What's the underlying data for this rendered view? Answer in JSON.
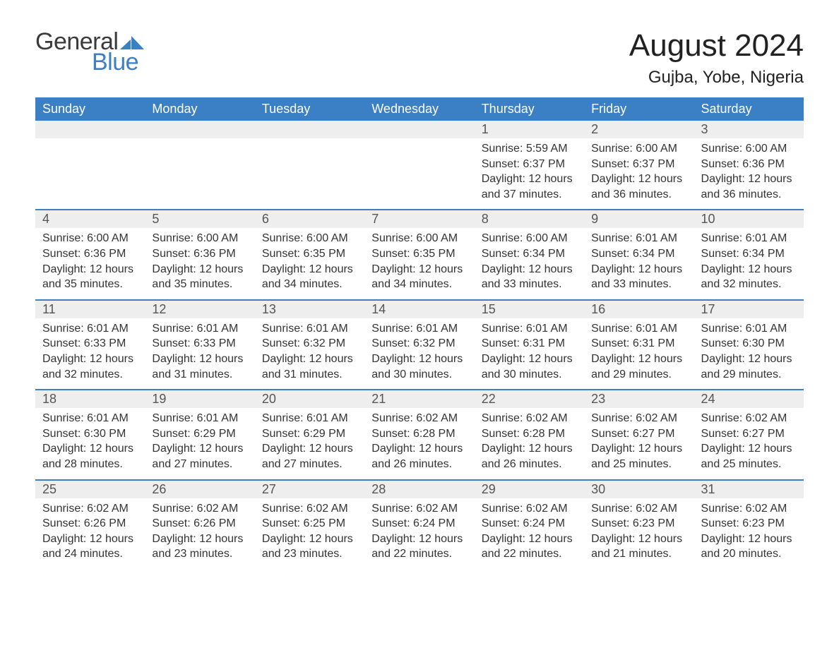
{
  "logo": {
    "general": "General",
    "blue": "Blue",
    "flag_color": "#3b7fc4"
  },
  "title": "August 2024",
  "location": "Gujba, Yobe, Nigeria",
  "colors": {
    "header_bg": "#3b7fc4",
    "header_text": "#ffffff",
    "daynum_bg": "#eeeeee",
    "week_border": "#3b7fc4",
    "text": "#333333",
    "page_bg": "#ffffff"
  },
  "weekdays": [
    "Sunday",
    "Monday",
    "Tuesday",
    "Wednesday",
    "Thursday",
    "Friday",
    "Saturday"
  ],
  "weeks": [
    [
      null,
      null,
      null,
      null,
      {
        "n": "1",
        "sr": "5:59 AM",
        "ss": "6:37 PM",
        "dl": "12 hours and 37 minutes."
      },
      {
        "n": "2",
        "sr": "6:00 AM",
        "ss": "6:37 PM",
        "dl": "12 hours and 36 minutes."
      },
      {
        "n": "3",
        "sr": "6:00 AM",
        "ss": "6:36 PM",
        "dl": "12 hours and 36 minutes."
      }
    ],
    [
      {
        "n": "4",
        "sr": "6:00 AM",
        "ss": "6:36 PM",
        "dl": "12 hours and 35 minutes."
      },
      {
        "n": "5",
        "sr": "6:00 AM",
        "ss": "6:36 PM",
        "dl": "12 hours and 35 minutes."
      },
      {
        "n": "6",
        "sr": "6:00 AM",
        "ss": "6:35 PM",
        "dl": "12 hours and 34 minutes."
      },
      {
        "n": "7",
        "sr": "6:00 AM",
        "ss": "6:35 PM",
        "dl": "12 hours and 34 minutes."
      },
      {
        "n": "8",
        "sr": "6:00 AM",
        "ss": "6:34 PM",
        "dl": "12 hours and 33 minutes."
      },
      {
        "n": "9",
        "sr": "6:01 AM",
        "ss": "6:34 PM",
        "dl": "12 hours and 33 minutes."
      },
      {
        "n": "10",
        "sr": "6:01 AM",
        "ss": "6:34 PM",
        "dl": "12 hours and 32 minutes."
      }
    ],
    [
      {
        "n": "11",
        "sr": "6:01 AM",
        "ss": "6:33 PM",
        "dl": "12 hours and 32 minutes."
      },
      {
        "n": "12",
        "sr": "6:01 AM",
        "ss": "6:33 PM",
        "dl": "12 hours and 31 minutes."
      },
      {
        "n": "13",
        "sr": "6:01 AM",
        "ss": "6:32 PM",
        "dl": "12 hours and 31 minutes."
      },
      {
        "n": "14",
        "sr": "6:01 AM",
        "ss": "6:32 PM",
        "dl": "12 hours and 30 minutes."
      },
      {
        "n": "15",
        "sr": "6:01 AM",
        "ss": "6:31 PM",
        "dl": "12 hours and 30 minutes."
      },
      {
        "n": "16",
        "sr": "6:01 AM",
        "ss": "6:31 PM",
        "dl": "12 hours and 29 minutes."
      },
      {
        "n": "17",
        "sr": "6:01 AM",
        "ss": "6:30 PM",
        "dl": "12 hours and 29 minutes."
      }
    ],
    [
      {
        "n": "18",
        "sr": "6:01 AM",
        "ss": "6:30 PM",
        "dl": "12 hours and 28 minutes."
      },
      {
        "n": "19",
        "sr": "6:01 AM",
        "ss": "6:29 PM",
        "dl": "12 hours and 27 minutes."
      },
      {
        "n": "20",
        "sr": "6:01 AM",
        "ss": "6:29 PM",
        "dl": "12 hours and 27 minutes."
      },
      {
        "n": "21",
        "sr": "6:02 AM",
        "ss": "6:28 PM",
        "dl": "12 hours and 26 minutes."
      },
      {
        "n": "22",
        "sr": "6:02 AM",
        "ss": "6:28 PM",
        "dl": "12 hours and 26 minutes."
      },
      {
        "n": "23",
        "sr": "6:02 AM",
        "ss": "6:27 PM",
        "dl": "12 hours and 25 minutes."
      },
      {
        "n": "24",
        "sr": "6:02 AM",
        "ss": "6:27 PM",
        "dl": "12 hours and 25 minutes."
      }
    ],
    [
      {
        "n": "25",
        "sr": "6:02 AM",
        "ss": "6:26 PM",
        "dl": "12 hours and 24 minutes."
      },
      {
        "n": "26",
        "sr": "6:02 AM",
        "ss": "6:26 PM",
        "dl": "12 hours and 23 minutes."
      },
      {
        "n": "27",
        "sr": "6:02 AM",
        "ss": "6:25 PM",
        "dl": "12 hours and 23 minutes."
      },
      {
        "n": "28",
        "sr": "6:02 AM",
        "ss": "6:24 PM",
        "dl": "12 hours and 22 minutes."
      },
      {
        "n": "29",
        "sr": "6:02 AM",
        "ss": "6:24 PM",
        "dl": "12 hours and 22 minutes."
      },
      {
        "n": "30",
        "sr": "6:02 AM",
        "ss": "6:23 PM",
        "dl": "12 hours and 21 minutes."
      },
      {
        "n": "31",
        "sr": "6:02 AM",
        "ss": "6:23 PM",
        "dl": "12 hours and 20 minutes."
      }
    ]
  ],
  "labels": {
    "sunrise": "Sunrise: ",
    "sunset": "Sunset: ",
    "daylight": "Daylight: "
  }
}
